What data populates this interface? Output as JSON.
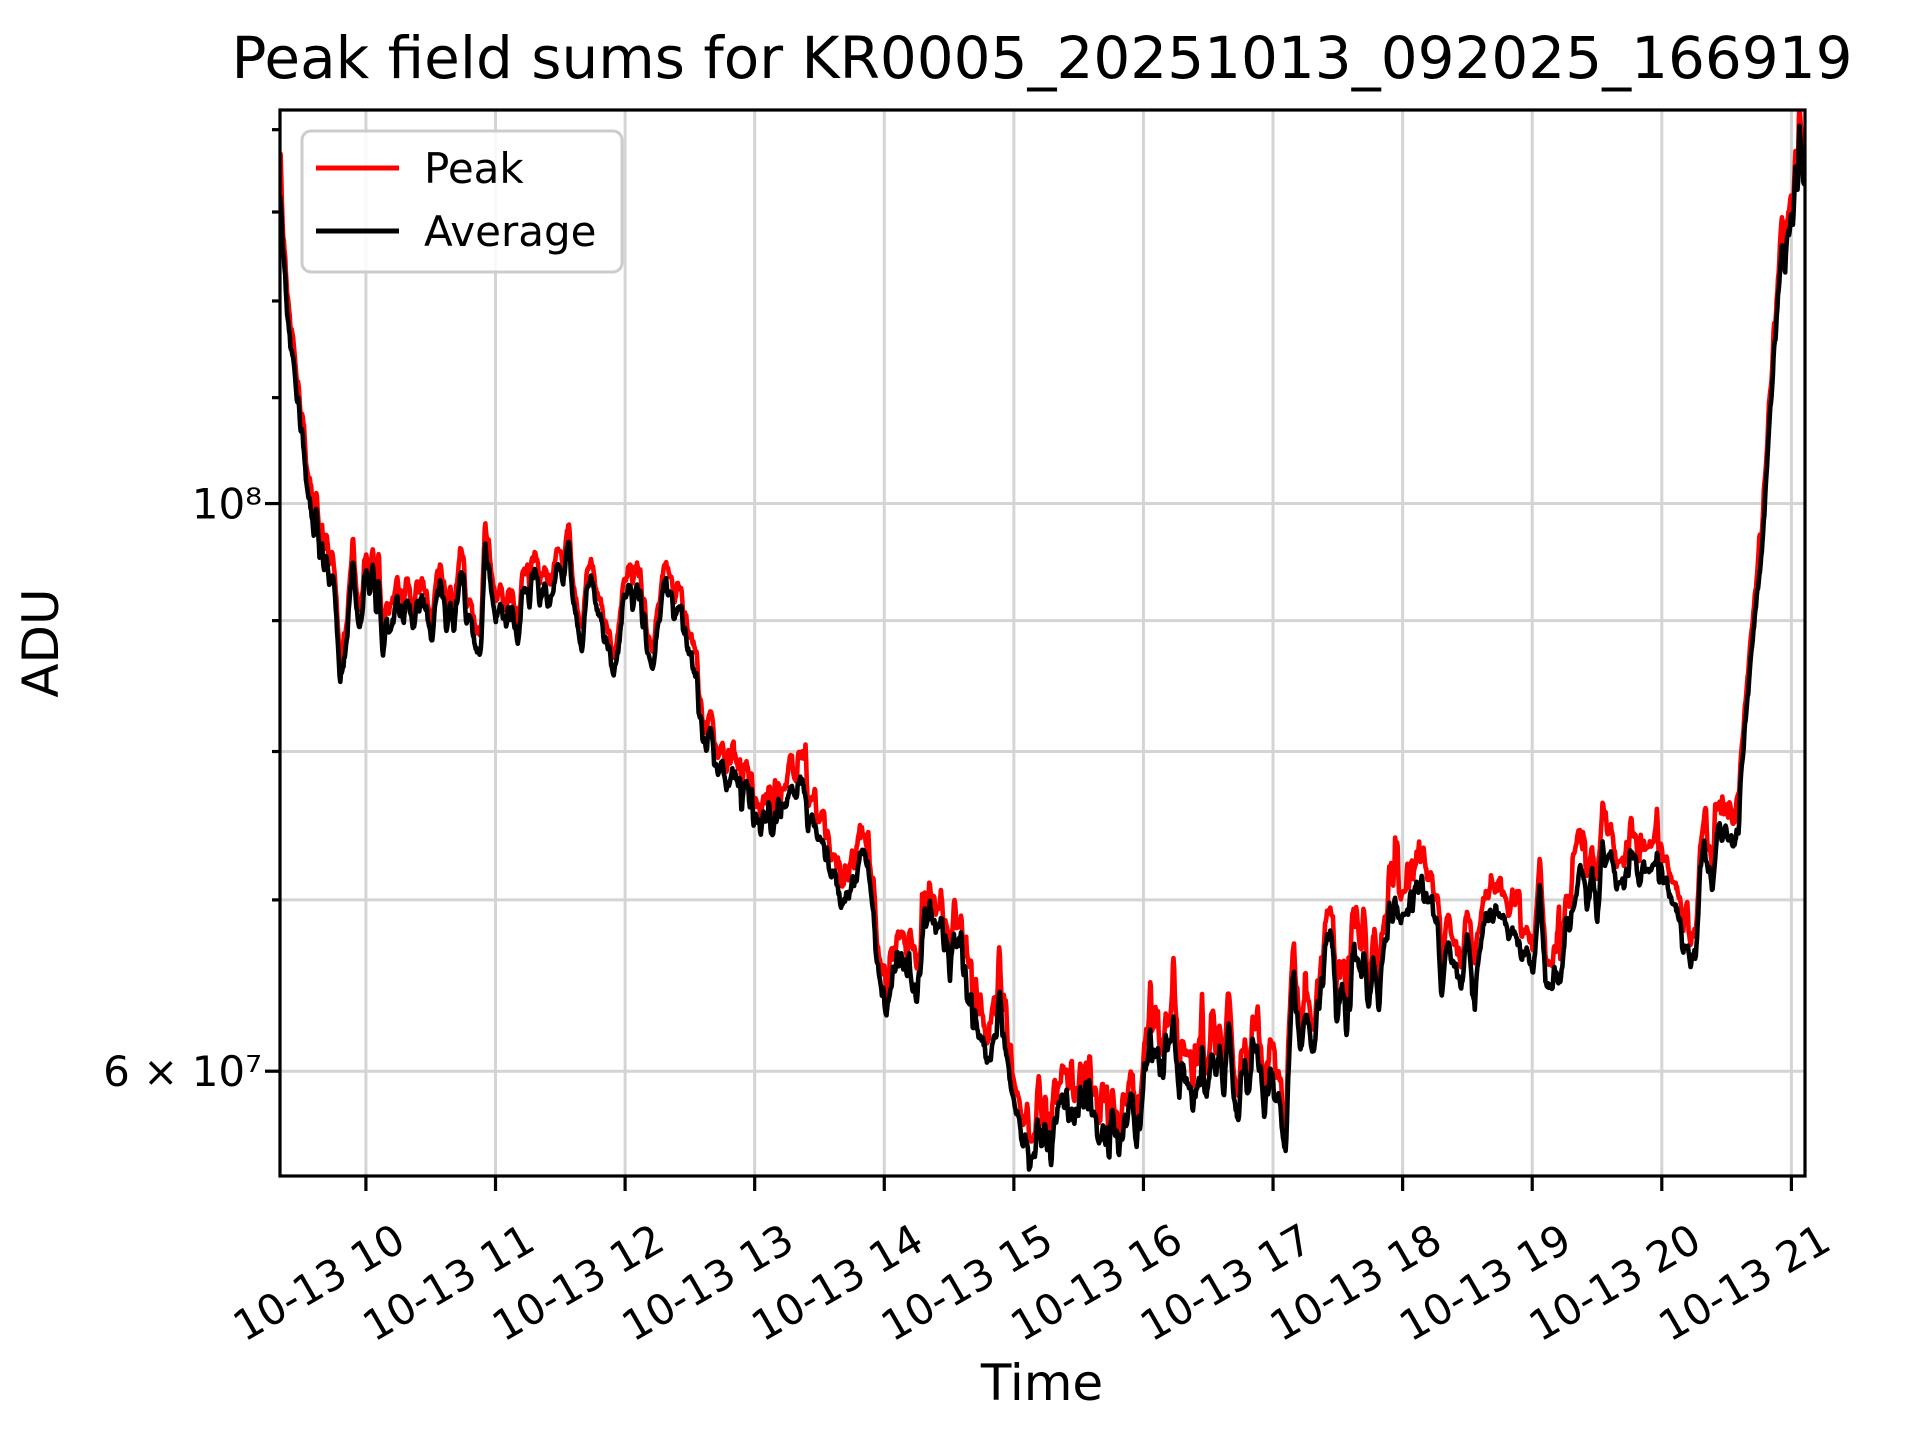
{
  "chart": {
    "title": "Peak field sums for KR0005_20251013_092025_166919",
    "xlabel": "Time",
    "ylabel": "ADU",
    "legend": [
      {
        "label": "Peak",
        "color": "#ff0000"
      },
      {
        "label": "Average",
        "color": "#000000"
      }
    ],
    "x_ticks": [
      {
        "t": 10,
        "label": "10-13 10"
      },
      {
        "t": 11,
        "label": "10-13 11"
      },
      {
        "t": 12,
        "label": "10-13 12"
      },
      {
        "t": 13,
        "label": "10-13 13"
      },
      {
        "t": 14,
        "label": "10-13 14"
      },
      {
        "t": 15,
        "label": "10-13 15"
      },
      {
        "t": 16,
        "label": "10-13 16"
      },
      {
        "t": 17,
        "label": "10-13 17"
      },
      {
        "t": 18,
        "label": "10-13 18"
      },
      {
        "t": 19,
        "label": "10-13 19"
      },
      {
        "t": 20,
        "label": "10-13 20"
      },
      {
        "t": 21,
        "label": "10-13 21"
      }
    ],
    "y_major_ticks": [
      {
        "v": 10,
        "label": "10⁸"
      },
      {
        "v": 6,
        "label": "6 × 10⁷"
      }
    ],
    "y_minor_ticks": [
      7,
      8,
      9,
      11,
      12,
      13,
      14
    ],
    "colors": {
      "grid": "#d4d4d4",
      "frame": "#000000",
      "background": "#ffffff",
      "legend_edge": "#cccccc"
    }
  },
  "chart_data": {
    "type": "line",
    "title": "Peak field sums for KR0005_20251013_092025_166919",
    "xlabel": "Time",
    "ylabel": "ADU",
    "yscale": "log",
    "grid": "on",
    "legend_position": "upper left",
    "x_unit": "hour of day on 10-13",
    "y_unit": "ADU, values in units of 1e7",
    "x_range": [
      9.337,
      21.105
    ],
    "y_range": [
      5.46,
      14.25
    ],
    "t": [
      9.34,
      9.36,
      9.38,
      9.4,
      9.42,
      9.44,
      9.46,
      9.48,
      9.5,
      9.52,
      9.54,
      9.56,
      9.58,
      9.6,
      9.62,
      9.64,
      9.66,
      9.68,
      9.7,
      9.72,
      9.74,
      9.76,
      9.78,
      9.8,
      9.82,
      9.84,
      9.86,
      9.88,
      9.9,
      9.92,
      9.94,
      9.96,
      9.99,
      10.01,
      10.03,
      10.05,
      10.08,
      10.1,
      10.13,
      10.16,
      10.19,
      10.24,
      10.28,
      10.31,
      10.36,
      10.39,
      10.44,
      10.48,
      10.51,
      10.55,
      10.58,
      10.62,
      10.65,
      10.68,
      10.74,
      10.78,
      10.81,
      10.85,
      10.88,
      10.92,
      10.97,
      11.0,
      11.04,
      11.08,
      11.12,
      11.17,
      11.22,
      11.26,
      11.3,
      11.34,
      11.38,
      11.42,
      11.47,
      11.52,
      11.57,
      11.61,
      11.64,
      11.67,
      11.71,
      11.74,
      11.78,
      11.82,
      11.86,
      11.9,
      11.93,
      11.97,
      12.02,
      12.06,
      12.1,
      12.14,
      12.18,
      12.22,
      12.26,
      12.3,
      12.34,
      12.38,
      12.42,
      12.46,
      12.5,
      12.55,
      12.58,
      12.62,
      12.66,
      12.71,
      12.75,
      12.8,
      12.85,
      12.9,
      12.95,
      13.0,
      13.04,
      13.09,
      13.14,
      13.18,
      13.22,
      13.27,
      13.32,
      13.37,
      13.41,
      13.45,
      13.5,
      13.53,
      13.57,
      13.61,
      13.65,
      13.7,
      13.75,
      13.8,
      13.86,
      13.9,
      13.94,
      13.98,
      14.02,
      14.06,
      14.11,
      14.15,
      14.19,
      14.25,
      14.3,
      14.34,
      14.38,
      14.43,
      14.48,
      14.51,
      14.55,
      14.59,
      14.63,
      14.67,
      14.7,
      14.74,
      14.78,
      14.82,
      14.86,
      14.89,
      14.93,
      14.97,
      15.01,
      15.06,
      15.1,
      15.14,
      15.18,
      15.22,
      15.25,
      15.29,
      15.34,
      15.41,
      15.45,
      15.52,
      15.58,
      15.63,
      15.68,
      15.73,
      15.76,
      15.81,
      15.87,
      15.9,
      15.95,
      16.01,
      16.05,
      16.09,
      16.12,
      16.15,
      16.18,
      16.24,
      16.28,
      16.32,
      16.36,
      16.4,
      16.45,
      16.49,
      16.52,
      16.56,
      16.59,
      16.62,
      16.66,
      16.7,
      16.73,
      16.77,
      16.8,
      16.84,
      16.88,
      16.93,
      16.97,
      17.01,
      17.05,
      17.08,
      17.1,
      17.13,
      17.16,
      17.19,
      17.22,
      17.25,
      17.28,
      17.31,
      17.35,
      17.38,
      17.43,
      17.46,
      17.5,
      17.53,
      17.57,
      17.61,
      17.64,
      17.67,
      17.7,
      17.74,
      17.77,
      17.81,
      17.85,
      17.9,
      17.95,
      18.0,
      18.05,
      18.11,
      18.17,
      18.22,
      18.27,
      18.3,
      18.33,
      18.36,
      18.39,
      18.41,
      18.45,
      18.5,
      18.54,
      18.56,
      18.62,
      18.66,
      18.72,
      18.78,
      18.82,
      18.85,
      18.89,
      18.95,
      19.02,
      19.06,
      19.1,
      19.14,
      19.18,
      19.22,
      19.26,
      19.3,
      19.34,
      19.38,
      19.42,
      19.46,
      19.5,
      19.54,
      19.58,
      19.64,
      19.69,
      19.73,
      19.77,
      19.82,
      19.87,
      19.92,
      19.96,
      20.0,
      20.04,
      20.07,
      20.1,
      20.13,
      20.17,
      20.22,
      20.26,
      20.29,
      20.31,
      20.33,
      20.36,
      20.39,
      20.43,
      20.45,
      20.48,
      20.5,
      20.54,
      20.57,
      20.59,
      20.61,
      20.65,
      20.7,
      20.73,
      20.76,
      20.79,
      20.81,
      20.84,
      20.86,
      20.88,
      20.9,
      20.92,
      20.93,
      20.95,
      20.96,
      20.99,
      21.0,
      21.01,
      21.03,
      21.04,
      21.05,
      21.06,
      21.08,
      21.1
    ],
    "series": [
      {
        "name": "Peak",
        "color": "#ff0000",
        "values": [
          13.75,
          12.75,
          12.3,
          11.95,
          11.72,
          11.52,
          11.32,
          11.06,
          10.81,
          10.61,
          10.4,
          10.25,
          10.1,
          9.95,
          10.05,
          9.74,
          9.85,
          9.59,
          9.69,
          9.44,
          9.49,
          9.36,
          9.03,
          8.69,
          8.83,
          8.85,
          9.08,
          9.34,
          9.6,
          9.34,
          9.13,
          9.04,
          9.49,
          9.52,
          9.29,
          9.54,
          9.27,
          9.44,
          8.9,
          9.13,
          9.06,
          9.35,
          9.15,
          9.31,
          9.11,
          9.28,
          9.39,
          9.06,
          8.92,
          9.37,
          9.42,
          9.08,
          9.24,
          9.03,
          9.66,
          9.08,
          9.18,
          8.93,
          8.81,
          9.74,
          9.44,
          9.13,
          9.34,
          9.08,
          9.24,
          8.98,
          9.49,
          9.29,
          9.59,
          9.32,
          9.42,
          9.18,
          9.56,
          9.44,
          9.78,
          9.18,
          9.01,
          8.95,
          9.49,
          9.52,
          9.21,
          9.08,
          8.93,
          8.81,
          8.75,
          9.18,
          9.42,
          9.24,
          9.39,
          9.15,
          8.85,
          8.78,
          9.08,
          9.46,
          9.42,
          9.18,
          9.29,
          9.03,
          8.83,
          8.65,
          8.34,
          8.14,
          8.34,
          7.94,
          8.09,
          7.84,
          7.98,
          7.77,
          7.88,
          7.66,
          7.53,
          7.71,
          7.59,
          7.77,
          7.67,
          7.85,
          7.74,
          7.97,
          7.65,
          7.71,
          7.52,
          7.43,
          7.31,
          7.24,
          7.19,
          7.11,
          7.22,
          7.31,
          7.42,
          7.16,
          6.8,
          6.58,
          6.43,
          6.65,
          6.8,
          6.65,
          6.77,
          6.47,
          6.91,
          7.05,
          6.88,
          7.02,
          6.76,
          6.64,
          6.9,
          6.84,
          6.6,
          6.46,
          6.36,
          6.31,
          6.22,
          6.17,
          6.35,
          6.55,
          6.2,
          6.1,
          5.95,
          5.8,
          5.68,
          5.57,
          5.84,
          5.7,
          5.78,
          5.68,
          5.93,
          5.97,
          5.81,
          6.0,
          5.98,
          5.8,
          5.77,
          5.7,
          5.85,
          5.66,
          5.85,
          5.99,
          5.73,
          6.09,
          6.35,
          6.13,
          6.21,
          6.09,
          6.31,
          6.36,
          6.03,
          6.15,
          6.03,
          5.96,
          6.18,
          6.03,
          6.18,
          6.05,
          6.17,
          5.95,
          6.42,
          6.03,
          5.92,
          6.15,
          6.01,
          6.25,
          6.2,
          5.91,
          6.09,
          6.02,
          5.96,
          5.82,
          5.73,
          6.28,
          6.78,
          6.38,
          6.15,
          6.46,
          6.37,
          6.21,
          6.48,
          6.62,
          6.95,
          6.79,
          6.37,
          6.57,
          6.35,
          6.71,
          6.84,
          6.69,
          6.78,
          6.54,
          6.76,
          6.45,
          6.86,
          7.02,
          7.12,
          7.08,
          7.13,
          7.16,
          7.2,
          7.09,
          7.0,
          6.58,
          6.78,
          6.93,
          6.67,
          6.82,
          6.51,
          6.94,
          6.62,
          6.52,
          7.04,
          7.04,
          7.03,
          7.13,
          6.91,
          7.02,
          6.86,
          6.78,
          6.7,
          7.33,
          6.69,
          6.65,
          6.66,
          6.69,
          6.99,
          7.04,
          7.24,
          7.4,
          7.1,
          7.32,
          7.01,
          7.43,
          7.44,
          7.29,
          7.19,
          7.36,
          7.41,
          7.3,
          7.35,
          7.42,
          7.36,
          7.29,
          7.24,
          7.06,
          7.1,
          7.0,
          6.81,
          6.75,
          6.82,
          7.19,
          7.45,
          7.53,
          7.34,
          7.25,
          7.59,
          7.63,
          7.51,
          7.61,
          7.48,
          7.53,
          7.59,
          7.94,
          8.44,
          9.0,
          9.31,
          9.63,
          10.05,
          10.53,
          11.1,
          11.47,
          11.88,
          12.28,
          12.61,
          12.74,
          12.49,
          12.82,
          13.04,
          13.15,
          12.97,
          13.65,
          13.6,
          13.48,
          14.4,
          13.84,
          13.48
        ]
      },
      {
        "name": "Average",
        "color": "#000000",
        "values": [
          13.3,
          12.55,
          12.1,
          11.75,
          11.55,
          11.35,
          11.15,
          10.9,
          10.65,
          10.45,
          10.25,
          10.1,
          9.95,
          9.8,
          9.9,
          9.6,
          9.7,
          9.45,
          9.55,
          9.3,
          9.35,
          9.22,
          8.9,
          8.56,
          8.7,
          8.72,
          8.95,
          9.2,
          9.44,
          9.2,
          9.0,
          8.91,
          9.35,
          9.38,
          9.15,
          9.4,
          9.13,
          9.3,
          8.77,
          9.0,
          8.93,
          9.21,
          9.02,
          9.17,
          8.98,
          9.14,
          9.25,
          8.93,
          8.79,
          9.23,
          9.28,
          8.95,
          9.1,
          8.9,
          9.5,
          8.95,
          9.05,
          8.8,
          8.68,
          9.58,
          9.3,
          9.0,
          9.2,
          8.95,
          9.1,
          8.85,
          9.35,
          9.15,
          9.45,
          9.18,
          9.28,
          9.05,
          9.42,
          9.3,
          9.62,
          9.05,
          8.88,
          8.82,
          9.35,
          9.38,
          9.08,
          8.95,
          8.8,
          8.68,
          8.62,
          9.05,
          9.28,
          9.1,
          9.25,
          9.02,
          8.72,
          8.65,
          8.95,
          9.32,
          9.28,
          9.05,
          9.15,
          8.9,
          8.7,
          8.52,
          8.22,
          8.02,
          8.22,
          7.82,
          7.97,
          7.72,
          7.86,
          7.65,
          7.76,
          7.55,
          7.42,
          7.6,
          7.48,
          7.66,
          7.56,
          7.73,
          7.62,
          7.8,
          7.53,
          7.59,
          7.41,
          7.32,
          7.2,
          7.13,
          7.08,
          7.0,
          7.11,
          7.2,
          7.31,
          7.05,
          6.7,
          6.48,
          6.33,
          6.55,
          6.7,
          6.55,
          6.67,
          6.37,
          6.8,
          6.94,
          6.77,
          6.91,
          6.66,
          6.54,
          6.79,
          6.73,
          6.5,
          6.36,
          6.26,
          6.21,
          6.12,
          6.07,
          6.25,
          6.45,
          6.1,
          6.0,
          5.85,
          5.7,
          5.58,
          5.48,
          5.74,
          5.6,
          5.68,
          5.58,
          5.83,
          5.86,
          5.71,
          5.89,
          5.87,
          5.7,
          5.67,
          5.6,
          5.74,
          5.56,
          5.74,
          5.87,
          5.62,
          5.97,
          6.18,
          6.01,
          6.09,
          5.97,
          6.18,
          6.23,
          5.91,
          6.03,
          5.91,
          5.84,
          6.06,
          5.91,
          6.06,
          5.93,
          6.05,
          5.83,
          6.24,
          5.91,
          5.8,
          6.03,
          5.89,
          6.12,
          6.08,
          5.79,
          5.97,
          5.9,
          5.84,
          5.7,
          5.62,
          6.15,
          6.61,
          6.25,
          6.03,
          6.33,
          6.24,
          6.09,
          6.35,
          6.49,
          6.79,
          6.66,
          6.24,
          6.44,
          6.22,
          6.58,
          6.7,
          6.56,
          6.64,
          6.41,
          6.63,
          6.32,
          6.72,
          6.88,
          6.98,
          6.94,
          6.99,
          7.02,
          7.06,
          6.95,
          6.86,
          6.45,
          6.65,
          6.79,
          6.54,
          6.69,
          6.38,
          6.8,
          6.49,
          6.39,
          6.9,
          6.9,
          6.89,
          6.99,
          6.77,
          6.88,
          6.72,
          6.65,
          6.57,
          7.16,
          6.56,
          6.52,
          6.53,
          6.56,
          6.85,
          6.9,
          7.1,
          7.25,
          6.96,
          7.18,
          6.87,
          7.28,
          7.29,
          7.15,
          7.05,
          7.22,
          7.26,
          7.16,
          7.21,
          7.27,
          7.22,
          7.15,
          7.1,
          6.92,
          6.96,
          6.86,
          6.68,
          6.62,
          6.69,
          7.05,
          7.3,
          7.38,
          7.2,
          7.11,
          7.44,
          7.48,
          7.36,
          7.46,
          7.33,
          7.38,
          7.44,
          7.8,
          8.3,
          8.85,
          9.16,
          9.48,
          9.89,
          10.37,
          10.94,
          11.3,
          11.7,
          12.1,
          12.42,
          12.55,
          12.3,
          12.63,
          12.85,
          12.95,
          12.78,
          13.45,
          13.4,
          13.28,
          14.1,
          13.63,
          13.28
        ]
      }
    ]
  }
}
